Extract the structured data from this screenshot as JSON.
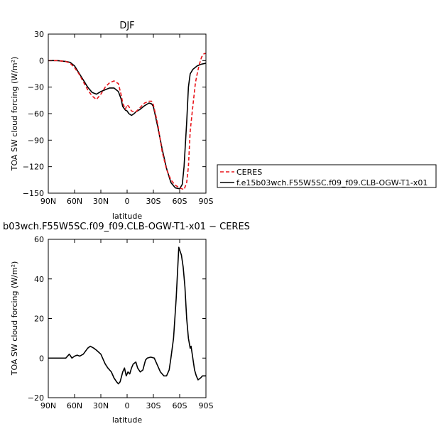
{
  "chart_data": [
    {
      "type": "line",
      "title": "DJF",
      "xlabel": "latitude",
      "ylabel": "TOA SW cloud forcing (W/m²)",
      "xlim": [
        90,
        -90
      ],
      "ylim": [
        -150,
        30
      ],
      "x_ticks": [
        90,
        60,
        30,
        0,
        -30,
        -60,
        -90
      ],
      "x_tick_labels": [
        "90N",
        "60N",
        "30N",
        "0",
        "30S",
        "60S",
        "90S"
      ],
      "y_ticks": [
        30,
        0,
        -30,
        -60,
        -90,
        -120,
        -150
      ],
      "y_tick_labels": [
        "30",
        "0",
        "−30",
        "−60",
        "−90",
        "−120",
        "−150"
      ],
      "legend_position": "right",
      "series": [
        {
          "name": "CERES",
          "color": "#e8141a",
          "dash": "dashed",
          "x": [
            90,
            80,
            70,
            65,
            60,
            55,
            50,
            45,
            40,
            35,
            30,
            25,
            20,
            15,
            10,
            7,
            5,
            2,
            0,
            -2,
            -5,
            -8,
            -10,
            -15,
            -20,
            -25,
            -28,
            -30,
            -35,
            -40,
            -45,
            -50,
            -55,
            -60,
            -65,
            -68,
            -70,
            -72,
            -75,
            -78,
            -80,
            -82,
            -85,
            -88,
            -90
          ],
          "values": [
            0,
            0,
            -1,
            -3,
            -8,
            -15,
            -24,
            -33,
            -40,
            -44,
            -38,
            -30,
            -25,
            -23,
            -26,
            -38,
            -48,
            -55,
            -50,
            -52,
            -57,
            -58,
            -58,
            -53,
            -48,
            -46,
            -46,
            -50,
            -72,
            -103,
            -123,
            -135,
            -141,
            -144,
            -146,
            -138,
            -120,
            -80,
            -52,
            -25,
            -15,
            -6,
            4,
            8,
            8
          ]
        },
        {
          "name": "f.e15b03wch.F55W5SC.f09_f09.CLB-OGW-T1-x01",
          "color": "#000000",
          "dash": "solid",
          "x": [
            90,
            80,
            70,
            65,
            60,
            55,
            50,
            45,
            40,
            35,
            30,
            25,
            20,
            15,
            10,
            7,
            5,
            2,
            0,
            -2,
            -5,
            -8,
            -10,
            -15,
            -20,
            -25,
            -28,
            -30,
            -35,
            -40,
            -45,
            -50,
            -55,
            -60,
            -63,
            -65,
            -68,
            -70,
            -72,
            -75,
            -80,
            -85,
            -90
          ],
          "values": [
            0,
            0,
            -1,
            -2,
            -6,
            -14,
            -22,
            -30,
            -36,
            -38,
            -35,
            -33,
            -31,
            -31,
            -35,
            -43,
            -52,
            -56,
            -57,
            -60,
            -62,
            -60,
            -58,
            -55,
            -51,
            -48,
            -49,
            -52,
            -75,
            -100,
            -122,
            -138,
            -144,
            -145,
            -140,
            -120,
            -70,
            -30,
            -15,
            -10,
            -6,
            -4,
            -3
          ]
        }
      ]
    },
    {
      "type": "line",
      "title": "b03wch.F55W5SC.f09_f09.CLB-OGW-T1-x01 − CERES",
      "xlabel": "latitude",
      "ylabel": "TOA SW cloud forcing (W/m²)",
      "xlim": [
        90,
        -90
      ],
      "ylim": [
        -20,
        60
      ],
      "x_ticks": [
        90,
        60,
        30,
        0,
        -30,
        -60,
        -90
      ],
      "x_tick_labels": [
        "90N",
        "60N",
        "30N",
        "0",
        "30S",
        "60S",
        "90S"
      ],
      "y_ticks": [
        60,
        40,
        20,
        0,
        -20
      ],
      "y_tick_labels": [
        "60",
        "40",
        "20",
        "0",
        "−20"
      ],
      "series": [
        {
          "color": "#000000",
          "dash": "solid",
          "x": [
            90,
            80,
            70,
            68,
            66,
            63,
            60,
            57,
            54,
            50,
            45,
            42,
            38,
            35,
            30,
            25,
            22,
            18,
            15,
            12,
            10,
            8,
            5,
            3,
            1,
            -1,
            -3,
            -5,
            -7,
            -10,
            -12,
            -15,
            -18,
            -21,
            -23,
            -27,
            -31,
            -35,
            -38,
            -42,
            -45,
            -48,
            -50,
            -53,
            -56,
            -59,
            -62,
            -64,
            -66,
            -68,
            -70,
            -72,
            -73,
            -74,
            -75,
            -76,
            -77,
            -79,
            -81,
            -84,
            -86,
            -88,
            -90
          ],
          "values": [
            0,
            0,
            0,
            1,
            2,
            0,
            1,
            1.5,
            1,
            2,
            5,
            6,
            5,
            4,
            2,
            -3,
            -5,
            -7,
            -10,
            -12,
            -13,
            -12,
            -7,
            -5,
            -9,
            -7,
            -8,
            -5,
            -3,
            -2,
            -5,
            -7,
            -6,
            -1,
            0,
            0.5,
            0,
            -4,
            -7,
            -9,
            -9,
            -6,
            0,
            10,
            30,
            56,
            52,
            46,
            36,
            20,
            10,
            5,
            6,
            3,
            0,
            -3,
            -6,
            -9,
            -11,
            -10,
            -9,
            -9,
            -9
          ]
        }
      ]
    }
  ]
}
